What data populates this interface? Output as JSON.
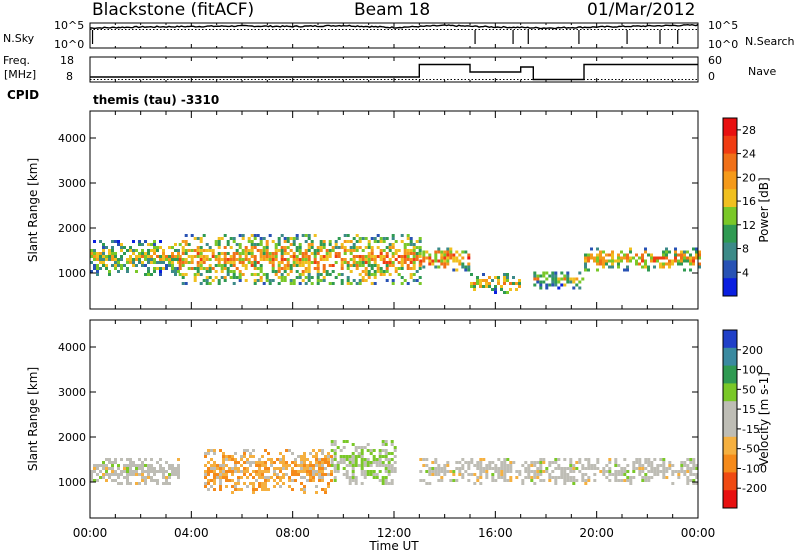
{
  "header": {
    "station": "Blackstone (fitACF)",
    "beam": "Beam 18",
    "date": "01/Mar/2012"
  },
  "left_labels": {
    "nsky": "N.Sky",
    "freq_line1": "Freq.",
    "freq_line2": "[MHz]",
    "cpid": "CPID"
  },
  "right_labels": {
    "nsearch": "N.Search",
    "nave": "Nave"
  },
  "cpid_text": "themis (tau) -3310",
  "colors": {
    "power": [
      "#0a1fe0",
      "#2852b4",
      "#3c8a88",
      "#2f9a52",
      "#7ac828",
      "#f0c020",
      "#f59a1a",
      "#f07018",
      "#f03c12",
      "#e81010"
    ],
    "velocity": [
      "#e81010",
      "#f04a12",
      "#f58a1a",
      "#f5b040",
      "#bebdb5",
      "#bebdb5",
      "#7ac828",
      "#2f9a52",
      "#3a8aa0",
      "#2040c8"
    ],
    "gray": "#bebdb5"
  },
  "chart_data": [
    {
      "type": "line",
      "name": "noise",
      "ylabel": "N.Sky",
      "y_ticks": [
        "10^5",
        "10^0"
      ],
      "y_ticks_right": [
        "10^5",
        "10^0"
      ],
      "series": [
        {
          "name": "N.Sky",
          "style": "solid",
          "x": [
            0,
            2,
            4,
            6,
            8,
            10,
            12,
            14,
            16,
            18,
            20,
            22,
            24
          ],
          "values": [
            4.0,
            4.2,
            4.3,
            4.4,
            4.3,
            4.5,
            4.1,
            4.5,
            4.2,
            4.0,
            4.2,
            4.4,
            4.6
          ]
        },
        {
          "name": "N.Search",
          "style": "dotted",
          "x": [
            0,
            24
          ],
          "values": [
            3.7,
            3.7
          ]
        }
      ],
      "ylim": [
        0,
        5
      ]
    },
    {
      "type": "line",
      "name": "frequency",
      "ylabel": "Freq. [MHz]",
      "y_ticks": [
        "18",
        "8"
      ],
      "y_ticks_right": [
        "60",
        "0"
      ],
      "series": [
        {
          "name": "Freq",
          "style": "solid",
          "x": [
            0,
            13,
            13,
            15,
            15,
            17,
            17,
            17.5,
            17.5,
            19.5,
            19.5,
            24
          ],
          "values": [
            10,
            10,
            15,
            15,
            12,
            12,
            14,
            14,
            9,
            9,
            15,
            15
          ]
        },
        {
          "name": "Nave",
          "style": "dotted",
          "x": [
            0,
            24
          ],
          "values": [
            9,
            9
          ]
        }
      ],
      "ylim": [
        8,
        18
      ]
    },
    {
      "type": "heatmap",
      "name": "power",
      "ylabel": "Slant Range [km]",
      "y_ticks": [
        1000,
        2000,
        3000,
        4000
      ],
      "ylim": [
        200,
        4600
      ],
      "xlim": [
        0,
        24
      ],
      "colorbar": {
        "label": "Power [dB]",
        "ticks": [
          4,
          8,
          12,
          16,
          20,
          24,
          28
        ],
        "range": [
          0,
          30
        ]
      },
      "bands": [
        {
          "x": [
            0,
            3.5
          ],
          "range": [
            1000,
            1800
          ],
          "value": 16
        },
        {
          "x": [
            3.5,
            13
          ],
          "range": [
            800,
            1900
          ],
          "value": 20
        },
        {
          "x": [
            13,
            15
          ],
          "range": [
            1100,
            1600
          ],
          "value": 22
        },
        {
          "x": [
            15,
            17
          ],
          "range": [
            600,
            1000
          ],
          "value": 18
        },
        {
          "x": [
            17.5,
            19.5
          ],
          "range": [
            700,
            1100
          ],
          "value": 16
        },
        {
          "x": [
            19.5,
            24
          ],
          "range": [
            1100,
            1600
          ],
          "value": 20
        }
      ]
    },
    {
      "type": "heatmap",
      "name": "velocity",
      "ylabel": "Slant Range [km]",
      "y_ticks": [
        1000,
        2000,
        3000,
        4000
      ],
      "ylim": [
        200,
        4600
      ],
      "xlim": [
        0,
        24
      ],
      "colorbar": {
        "label": "Velocity [m s-1]",
        "ticks": [
          200,
          100,
          50,
          15,
          -15,
          -50,
          -100,
          -200
        ],
        "range": [
          -250,
          250
        ]
      },
      "bands": [
        {
          "x": [
            0,
            3.5
          ],
          "range": [
            1000,
            1600
          ],
          "value": 0
        },
        {
          "x": [
            4.5,
            9.5
          ],
          "range": [
            800,
            1800
          ],
          "value": -80
        },
        {
          "x": [
            9.5,
            12
          ],
          "range": [
            1000,
            2000
          ],
          "value": 40
        },
        {
          "x": [
            13,
            24
          ],
          "range": [
            1000,
            1600
          ],
          "value": 0
        }
      ]
    }
  ],
  "x_axis": {
    "label": "Time UT",
    "ticks": [
      "00:00",
      "04:00",
      "08:00",
      "12:00",
      "16:00",
      "20:00",
      "00:00"
    ]
  }
}
